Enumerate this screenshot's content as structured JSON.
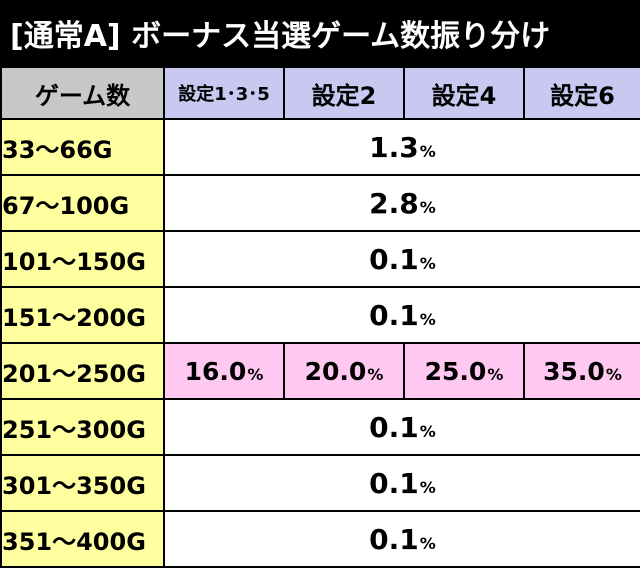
{
  "title": "[通常A] ボーナス当選ゲーム数振り分け",
  "header": {
    "corner": "ゲーム数",
    "settings": [
      "設定1･3･5",
      "設定2",
      "設定4",
      "設定6"
    ]
  },
  "percent_sign": "%",
  "rows": [
    {
      "range": "33～66G",
      "value": "1.3"
    },
    {
      "range": "67～100G",
      "value": "2.8"
    },
    {
      "range": "101～150G",
      "value": "0.1"
    },
    {
      "range": "151～200G",
      "value": "0.1"
    },
    {
      "range": "201～250G",
      "values": [
        "16.0",
        "20.0",
        "25.0",
        "35.0"
      ]
    },
    {
      "range": "251～300G",
      "value": "0.1"
    },
    {
      "range": "301～350G",
      "value": "0.1"
    },
    {
      "range": "351～400G",
      "value": "0.1"
    }
  ],
  "colors": {
    "title_bg": "#000000",
    "header_corner": "#c8c8c8",
    "header_settings": "#c8c8f0",
    "range_cell": "#ffffa0",
    "highlight_cell": "#ffc8f0"
  }
}
